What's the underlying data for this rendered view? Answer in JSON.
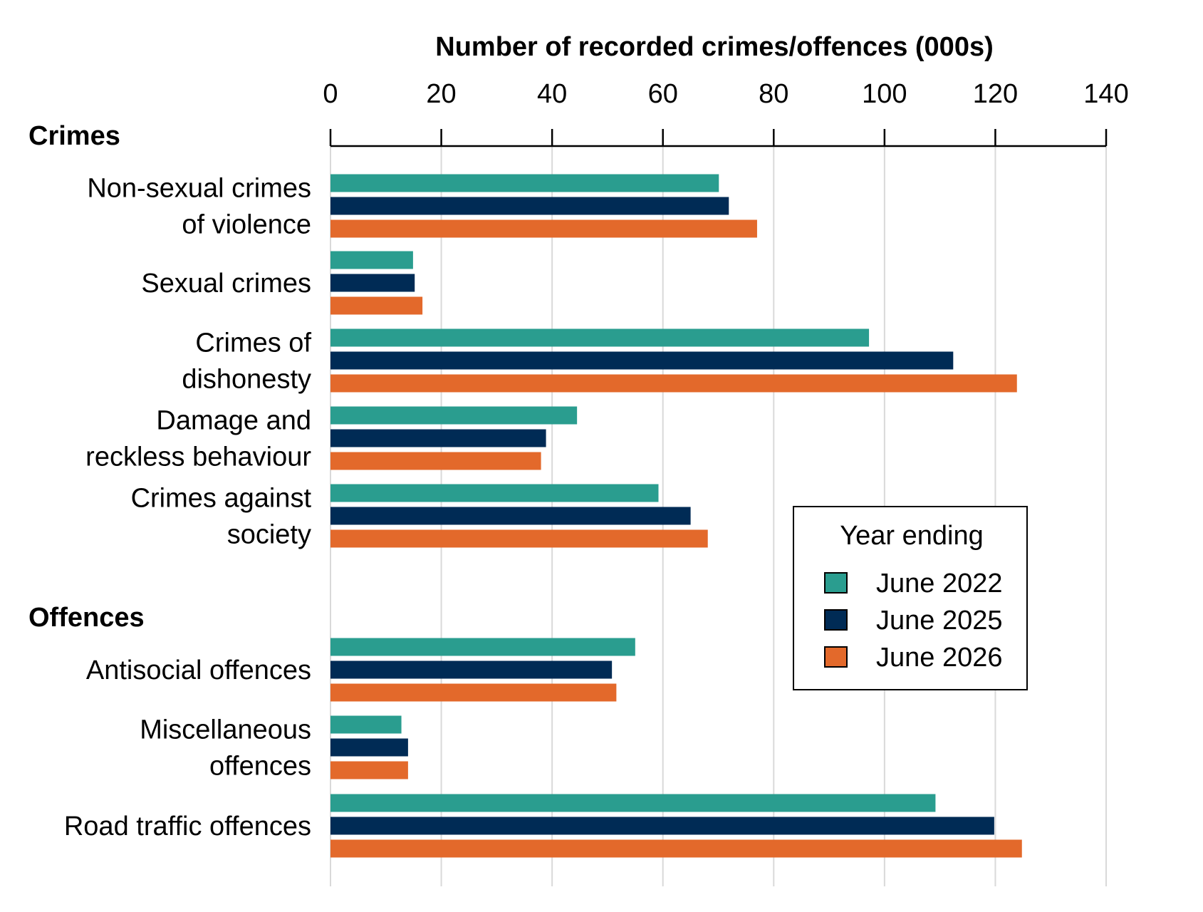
{
  "chart_data": {
    "type": "bar",
    "orientation": "horizontal",
    "title": "",
    "xlabel": "Number of recorded crimes/offences (000s)",
    "xlim": [
      0,
      140
    ],
    "xticks": [
      0,
      20,
      40,
      60,
      80,
      100,
      120,
      140
    ],
    "x_axis_position": "top",
    "grid": "vertical",
    "groups": [
      {
        "name": "Crimes",
        "categories": [
          {
            "label": [
              "Non-sexual crimes",
              "of violence"
            ],
            "values": [
              70.1,
              71.9,
              77.0
            ]
          },
          {
            "label": [
              "Sexual crimes"
            ],
            "values": [
              14.9,
              15.2,
              16.6
            ]
          },
          {
            "label": [
              "Crimes of",
              "dishonesty"
            ],
            "values": [
              97.2,
              112.4,
              123.9
            ]
          },
          {
            "label": [
              "Damage and",
              "reckless behaviour"
            ],
            "values": [
              44.5,
              38.9,
              38.0
            ]
          },
          {
            "label": [
              "Crimes against",
              "society"
            ],
            "values": [
              59.2,
              65.0,
              68.1
            ]
          }
        ]
      },
      {
        "name": "Offences",
        "categories": [
          {
            "label": [
              "Antisocial offences"
            ],
            "values": [
              55.0,
              50.8,
              51.6
            ]
          },
          {
            "label": [
              "Miscellaneous",
              "offences"
            ],
            "values": [
              12.8,
              14.0,
              14.0
            ]
          },
          {
            "label": [
              "Road traffic offences"
            ],
            "values": [
              109.2,
              119.8,
              124.8
            ]
          }
        ]
      }
    ],
    "series": [
      {
        "name": "June 2022",
        "color": "#2a9d8f"
      },
      {
        "name": "June 2025",
        "color": "#002b55"
      },
      {
        "name": "June 2026",
        "color": "#e3692b"
      }
    ],
    "legend": {
      "title": "Year ending",
      "placement": "center-right"
    }
  }
}
